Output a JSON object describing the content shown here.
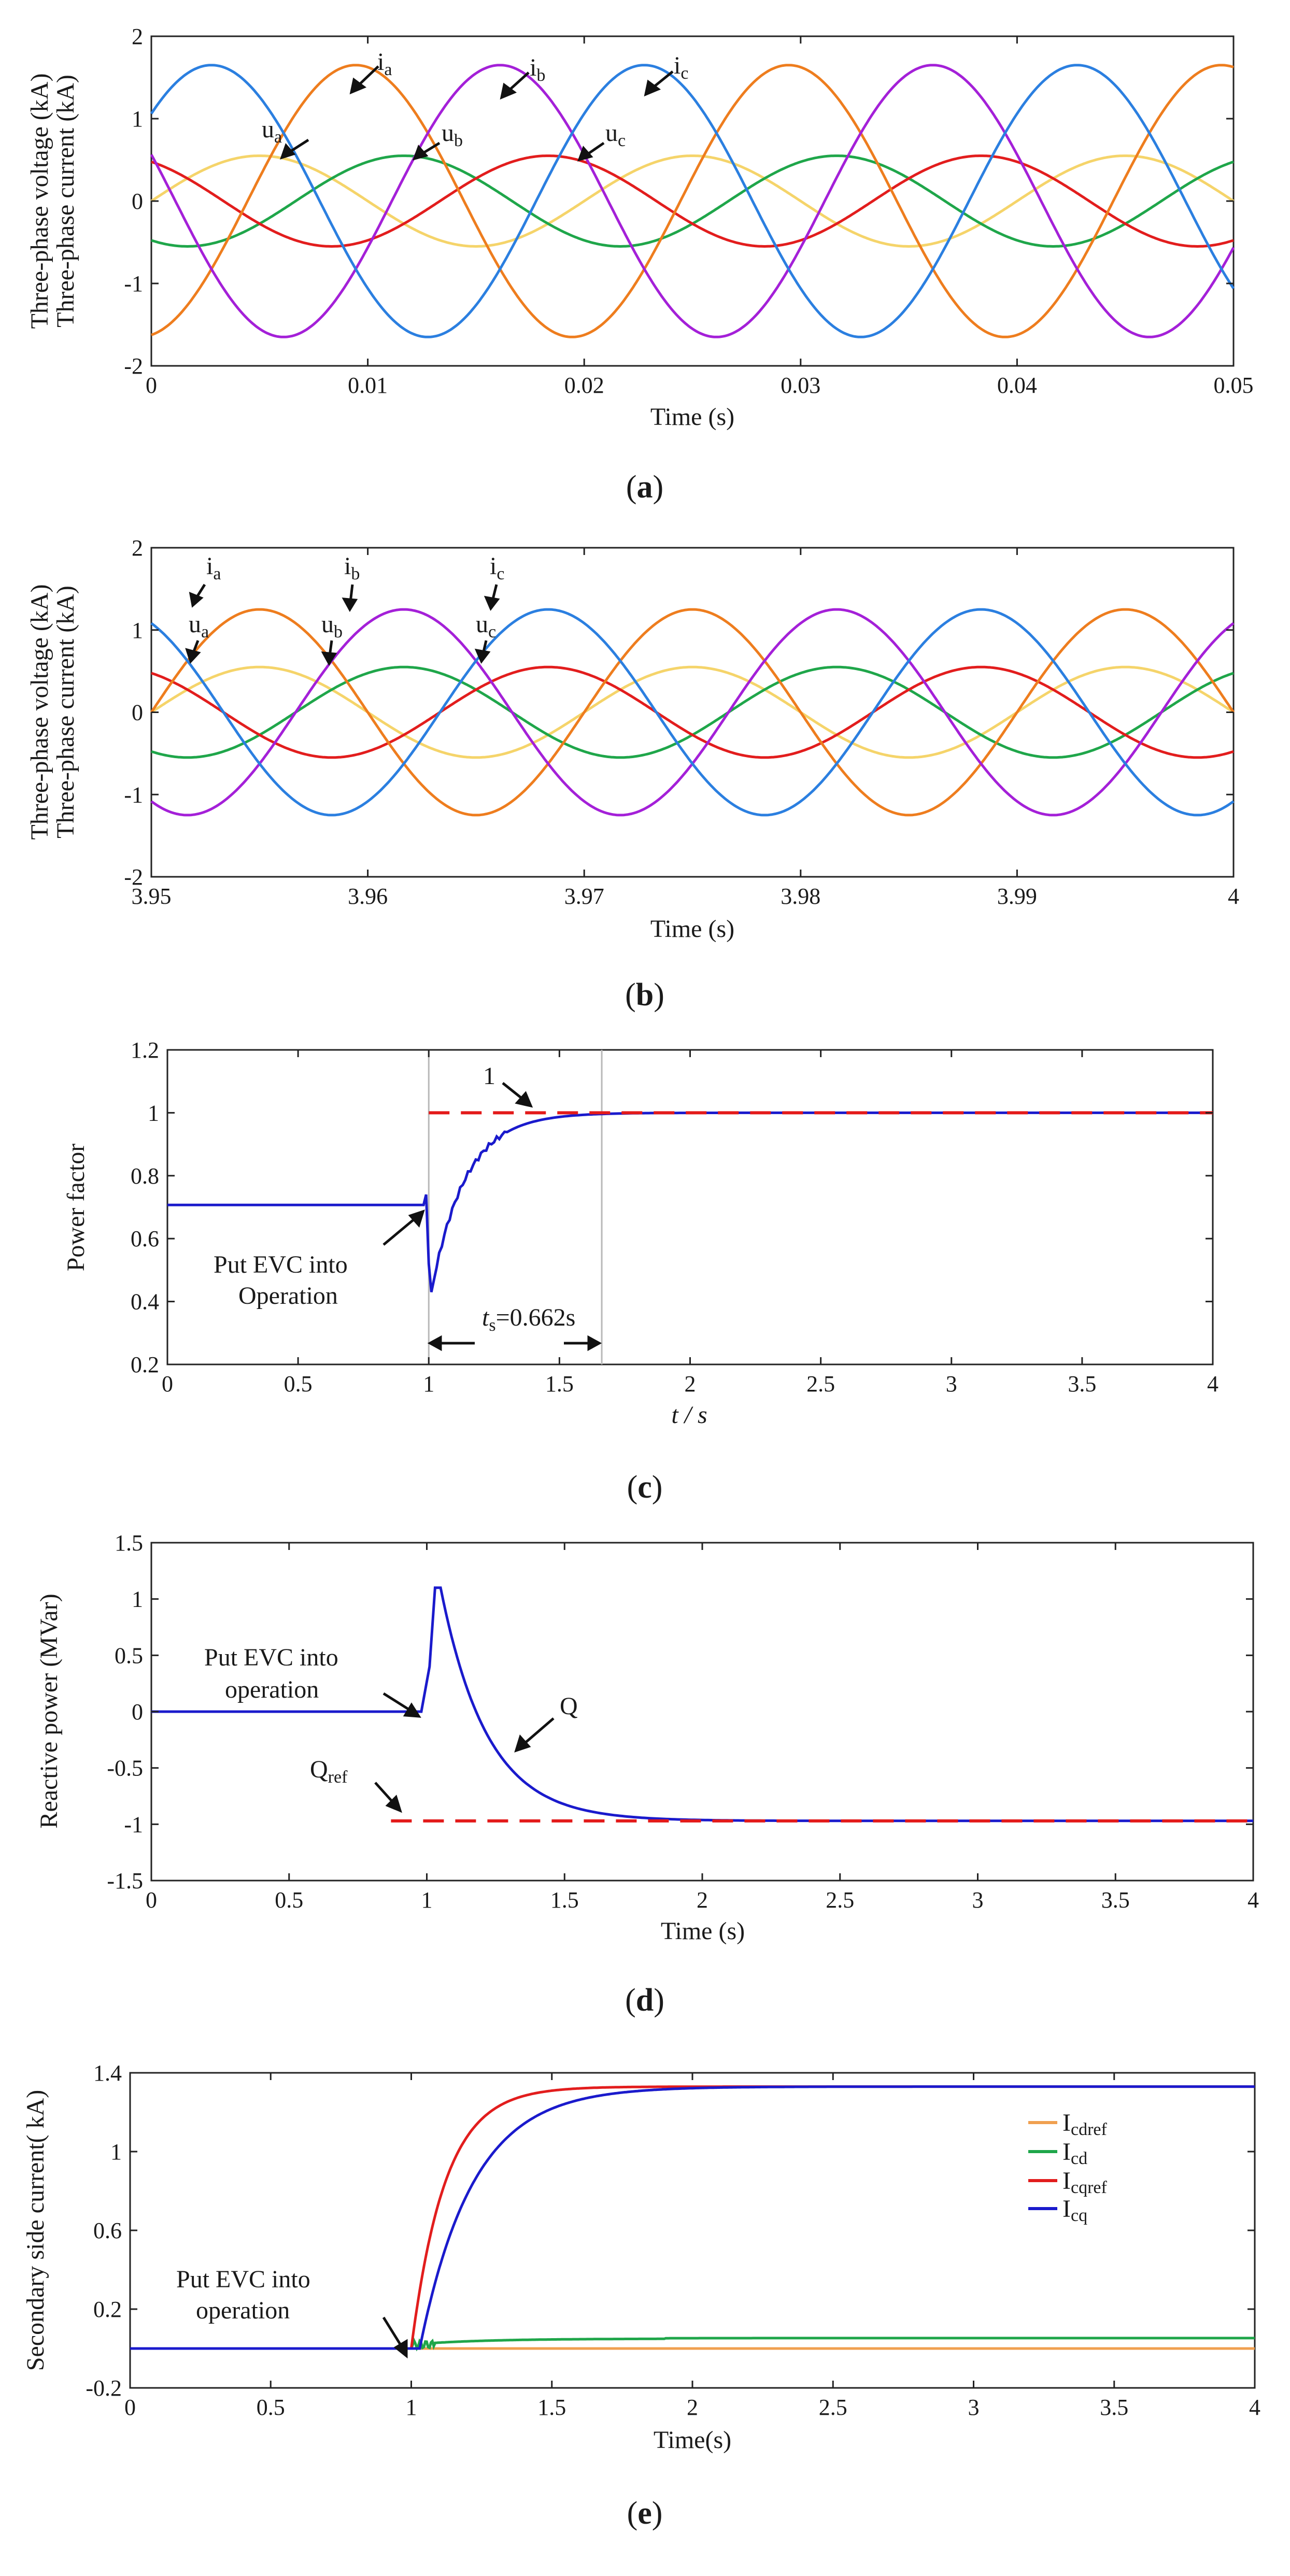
{
  "colors": {
    "orange": "#ee7d1e",
    "purple": "#a420d8",
    "blue_c": "#2b7fe0",
    "yellow": "#f5d46a",
    "green": "#1fa64a",
    "red": "#e21d1d",
    "navy": "#1a1acc",
    "dash_red": "#e31a1a",
    "light_orange": "#f0a050"
  },
  "chart_data": [
    {
      "panel": "a",
      "type": "line",
      "caption": "a",
      "xlabel": "Time (s)",
      "ylabel_lines": [
        "Three-phase voltage (kA)",
        "Three-phase current (kA)"
      ],
      "xlim": [
        0,
        0.05
      ],
      "ylim": [
        -2,
        2
      ],
      "xticks": [
        "0",
        "0.01",
        "0.02",
        "0.03",
        "0.04",
        "0.05"
      ],
      "yticks": [
        "-2",
        "-1",
        "0",
        "1",
        "2"
      ],
      "frequency_hz": 50,
      "series": [
        {
          "name": "ia",
          "label": "i",
          "sub": "a",
          "color": "orange",
          "amplitude": 1.65,
          "phase_deg": -80
        },
        {
          "name": "ib",
          "label": "i",
          "sub": "b",
          "color": "purple",
          "amplitude": 1.65,
          "phase_deg": 160
        },
        {
          "name": "ic",
          "label": "i",
          "sub": "c",
          "color": "blue_c",
          "amplitude": 1.65,
          "phase_deg": 40
        },
        {
          "name": "ua",
          "label": "u",
          "sub": "a",
          "color": "yellow",
          "amplitude": 0.55,
          "phase_deg": 0
        },
        {
          "name": "ub",
          "label": "u",
          "sub": "b",
          "color": "green",
          "amplitude": 0.55,
          "phase_deg": -120
        },
        {
          "name": "uc",
          "label": "u",
          "sub": "c",
          "color": "red",
          "amplitude": 0.55,
          "phase_deg": 120
        }
      ]
    },
    {
      "panel": "b",
      "type": "line",
      "caption": "b",
      "xlabel": "Time (s)",
      "ylabel_lines": [
        "Three-phase voltage (kA)",
        "Three-phase current (kA)"
      ],
      "xlim": [
        3.95,
        4.0
      ],
      "ylim": [
        -2,
        2
      ],
      "xticks": [
        "3.95",
        "3.96",
        "3.97",
        "3.98",
        "3.99",
        "4"
      ],
      "yticks": [
        "-2",
        "-1",
        "0",
        "1",
        "2"
      ],
      "frequency_hz": 50,
      "series": [
        {
          "name": "ia",
          "label": "i",
          "sub": "a",
          "color": "orange",
          "amplitude": 1.25,
          "phase_deg": 0
        },
        {
          "name": "ib",
          "label": "i",
          "sub": "b",
          "color": "purple",
          "amplitude": 1.25,
          "phase_deg": -120
        },
        {
          "name": "ic",
          "label": "i",
          "sub": "c",
          "color": "blue_c",
          "amplitude": 1.25,
          "phase_deg": 120
        },
        {
          "name": "ua",
          "label": "u",
          "sub": "a",
          "color": "yellow",
          "amplitude": 0.55,
          "phase_deg": 0
        },
        {
          "name": "ub",
          "label": "u",
          "sub": "b",
          "color": "green",
          "amplitude": 0.55,
          "phase_deg": -120
        },
        {
          "name": "uc",
          "label": "u",
          "sub": "c",
          "color": "red",
          "amplitude": 0.55,
          "phase_deg": 120
        }
      ]
    },
    {
      "panel": "c",
      "type": "line",
      "caption": "c",
      "xlabel": "t / s",
      "ylabel": "Power factor",
      "xlim": [
        0,
        4
      ],
      "ylim": [
        0.2,
        1.2
      ],
      "xticks": [
        "0",
        "0.5",
        "1",
        "1.5",
        "2",
        "2.5",
        "3",
        "3.5",
        "4"
      ],
      "yticks": [
        "0.2",
        "0.4",
        "0.6",
        "0.8",
        "1",
        "1.2"
      ],
      "before_value": 0.707,
      "switch_time": 1,
      "dip_value": 0.43,
      "final_value": 1,
      "reference_value": 1,
      "reference_label": "1",
      "settling_time_label": "t",
      "settling_time_sub": "s",
      "settling_time_value": "=0.662s",
      "settle_end": 1.662,
      "annotation_lines": [
        "Put EVC into",
        "Operation"
      ]
    },
    {
      "panel": "d",
      "type": "line",
      "caption": "d",
      "xlabel": "Time (s)",
      "ylabel": "Reactive power (MVar)",
      "xlim": [
        0,
        4
      ],
      "ylim": [
        -1.5,
        1.5
      ],
      "xticks": [
        "0",
        "0.5",
        "1",
        "1.5",
        "2",
        "2.5",
        "3",
        "3.5",
        "4"
      ],
      "yticks": [
        "-1.5",
        "-1",
        "-0.5",
        "0",
        "0.5",
        "1",
        "1.5"
      ],
      "before_value": 0,
      "switch_time": 1,
      "peak_value": 1.1,
      "final_value": -0.97,
      "reference_value": -0.97,
      "reference_start": 0.87,
      "series_label": "Q",
      "reference_label": "Q",
      "reference_sub": "ref",
      "annotation_lines": [
        "Put EVC into",
        "operation"
      ]
    },
    {
      "panel": "e",
      "type": "line",
      "caption": "e",
      "xlabel": "Time(s)",
      "ylabel": "Secondary side current( kA)",
      "xlim": [
        0,
        4
      ],
      "ylim": [
        -0.2,
        1.4
      ],
      "xticks": [
        "0",
        "0.5",
        "1",
        "1.5",
        "2",
        "2.5",
        "3",
        "3.5",
        "4"
      ],
      "yticks": [
        "-0.2",
        "0.2",
        "0.6",
        "1",
        "1.4"
      ],
      "switch_time": 1,
      "annotation_lines": [
        "Put EVC into",
        "operation"
      ],
      "series": [
        {
          "name": "Icdref",
          "label": "I",
          "sub": "cdref",
          "color": "light_orange",
          "final": 0.0
        },
        {
          "name": "Icd",
          "label": "I",
          "sub": "cd",
          "color": "green",
          "final": 0.05
        },
        {
          "name": "Icqref",
          "label": "I",
          "sub": "cqref",
          "color": "red",
          "final": 1.33
        },
        {
          "name": "Icq",
          "label": "I",
          "sub": "cq",
          "color": "navy",
          "final": 1.33
        }
      ]
    }
  ]
}
